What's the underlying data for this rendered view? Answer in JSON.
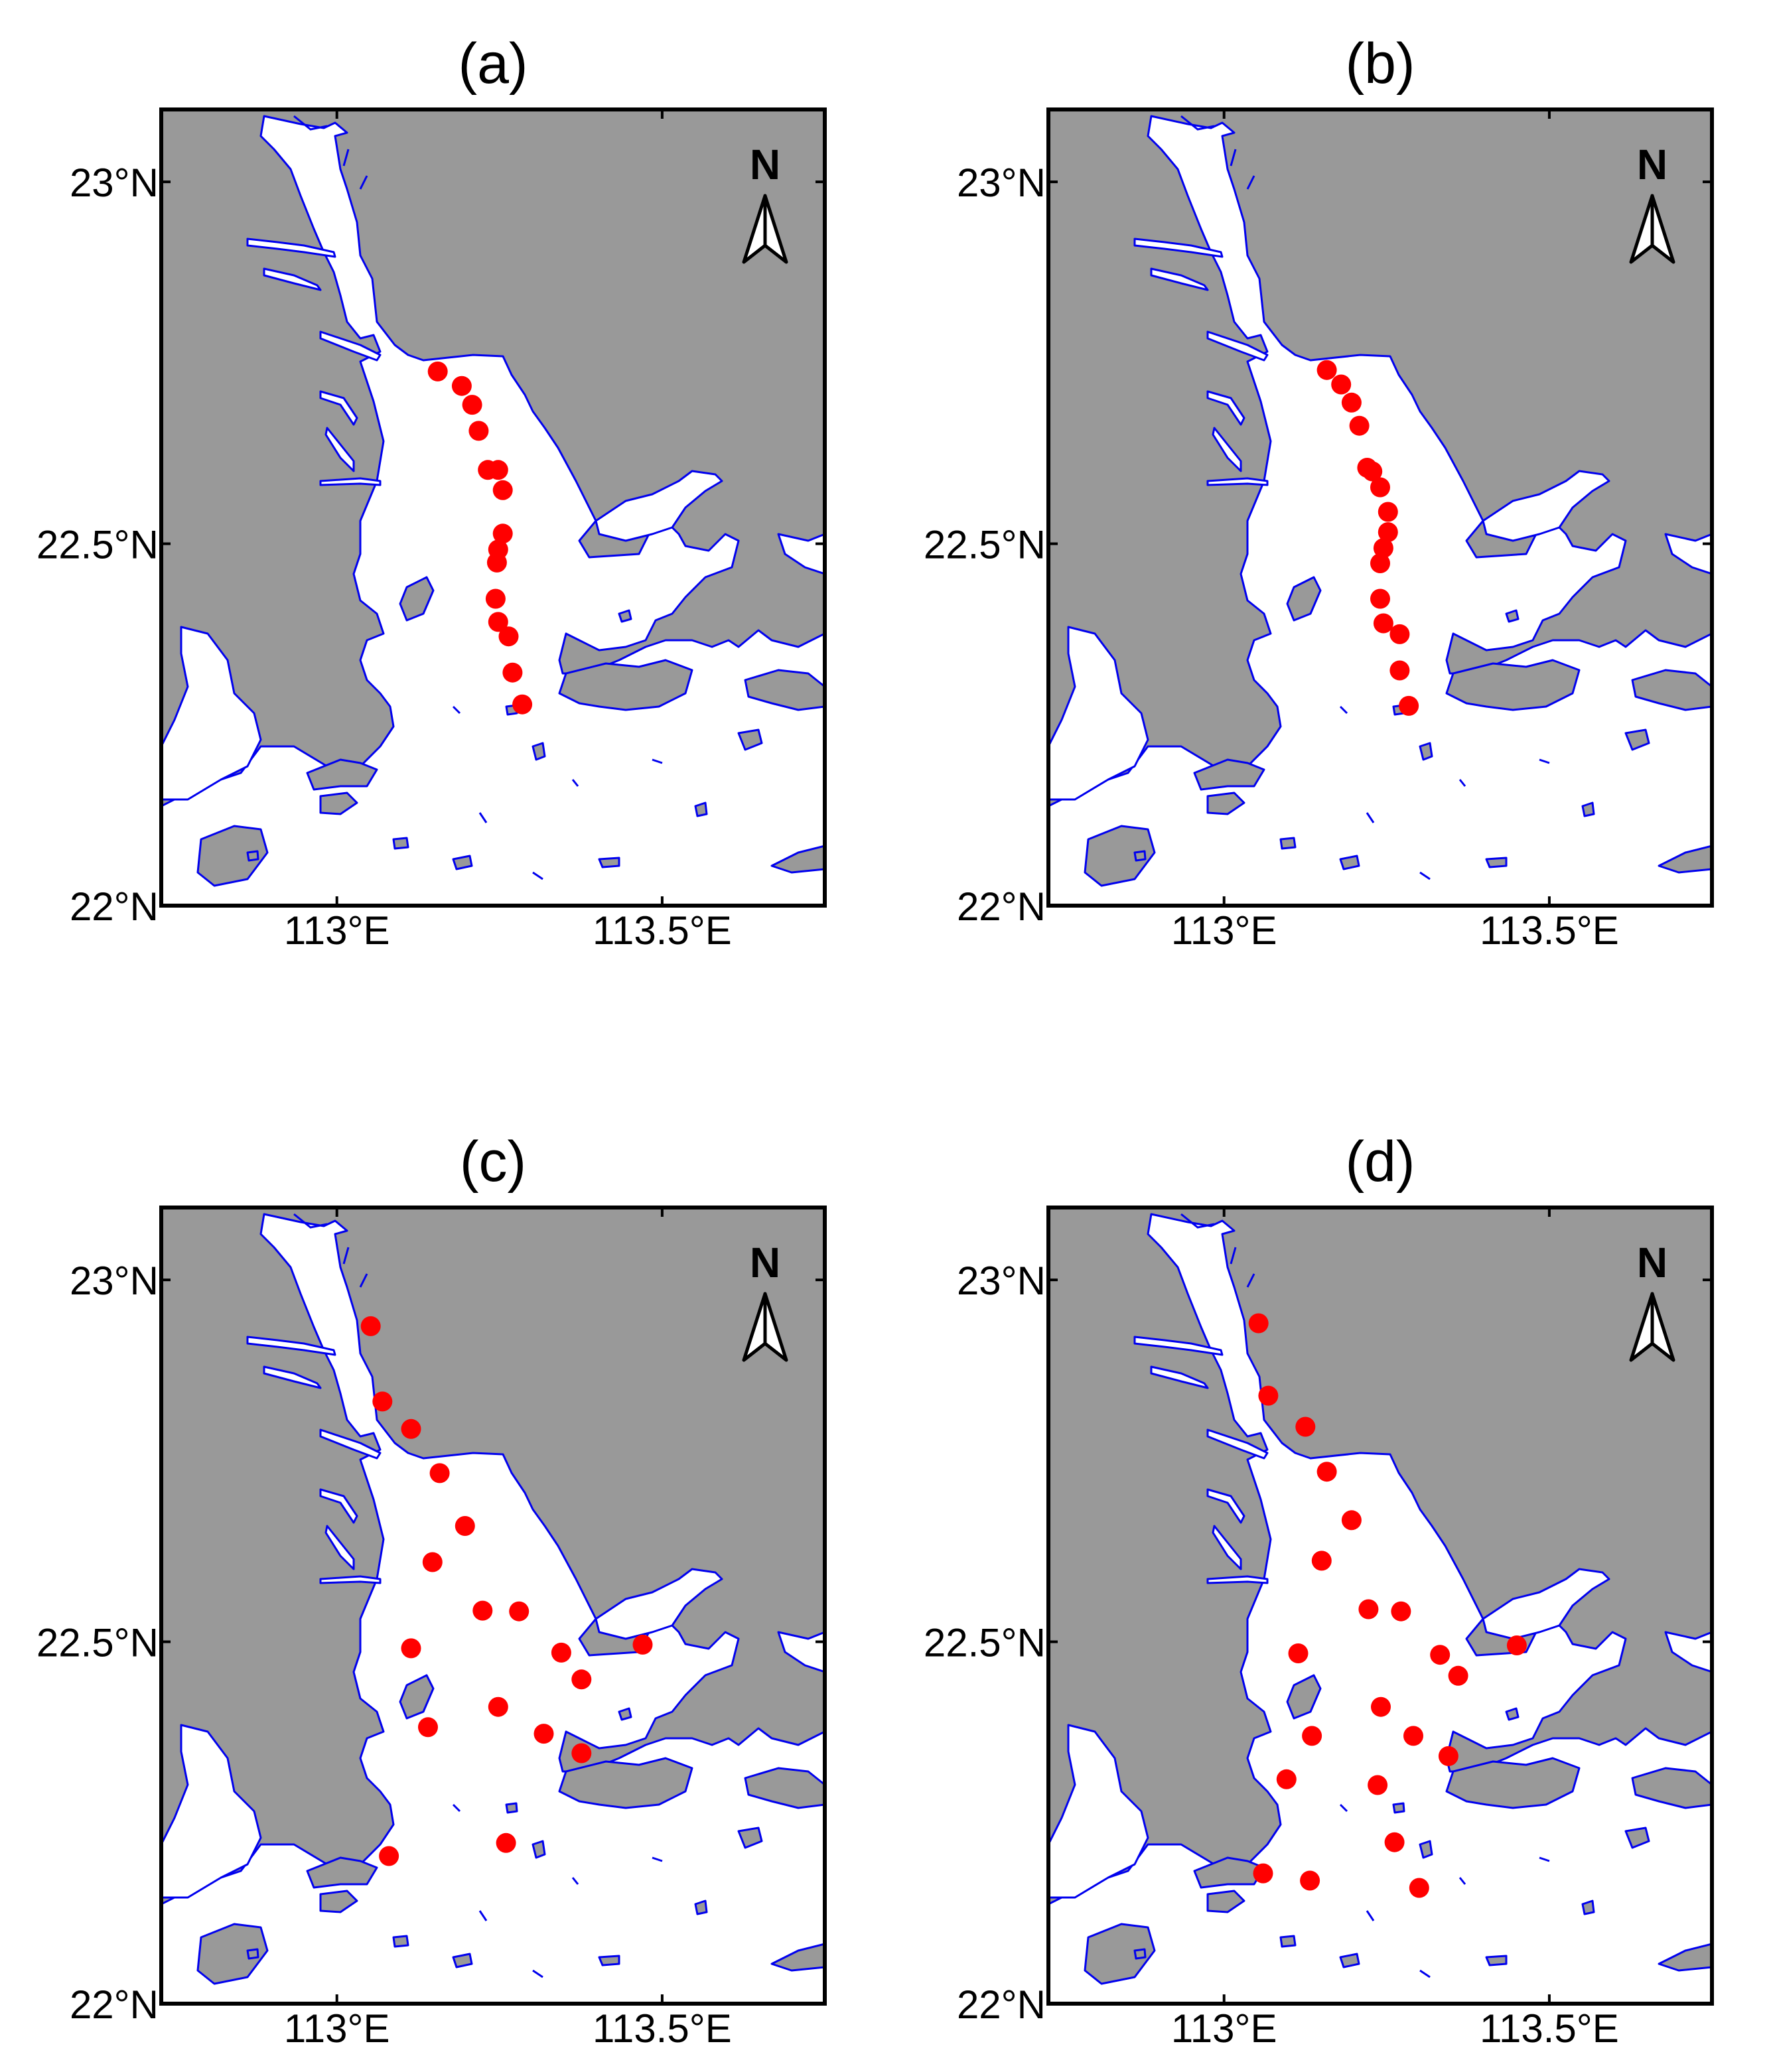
{
  "colors": {
    "land": "#999999",
    "water": "#ffffff",
    "coastline": "#0000ee",
    "station": "#ff0000",
    "frame": "#000000"
  },
  "north_arrow": {
    "label": "N",
    "icon": "north-arrow-icon"
  },
  "axes": {
    "lon_range": [
      112.73,
      113.75
    ],
    "lat_range": [
      22.0,
      23.1
    ],
    "x_ticks": [
      113.0,
      113.5
    ],
    "x_tick_labels": [
      "113°E",
      "113.5°E"
    ],
    "y_ticks": [
      22.0,
      22.5,
      23.0
    ],
    "y_tick_labels": [
      "22°N",
      "22.5°N",
      "23°N"
    ]
  },
  "panels": [
    {
      "title": "(a)",
      "stations": [
        [
          113.155,
          22.738
        ],
        [
          113.192,
          22.718
        ],
        [
          113.208,
          22.692
        ],
        [
          113.218,
          22.656
        ],
        [
          113.232,
          22.602
        ],
        [
          113.248,
          22.602
        ],
        [
          113.255,
          22.574
        ],
        [
          113.255,
          22.514
        ],
        [
          113.248,
          22.492
        ],
        [
          113.246,
          22.474
        ],
        [
          113.244,
          22.424
        ],
        [
          113.248,
          22.392
        ],
        [
          113.264,
          22.372
        ],
        [
          113.27,
          22.322
        ],
        [
          113.285,
          22.278
        ]
      ]
    },
    {
      "title": "(b)",
      "stations": [
        [
          113.158,
          22.74
        ],
        [
          113.18,
          22.72
        ],
        [
          113.196,
          22.695
        ],
        [
          113.208,
          22.663
        ],
        [
          113.22,
          22.605
        ],
        [
          113.228,
          22.6
        ],
        [
          113.24,
          22.578
        ],
        [
          113.252,
          22.544
        ],
        [
          113.252,
          22.516
        ],
        [
          113.245,
          22.494
        ],
        [
          113.24,
          22.473
        ],
        [
          113.24,
          22.424
        ],
        [
          113.245,
          22.39
        ],
        [
          113.27,
          22.375
        ],
        [
          113.27,
          22.325
        ],
        [
          113.284,
          22.276
        ]
      ]
    },
    {
      "title": "(c)",
      "stations": [
        [
          113.052,
          22.936
        ],
        [
          113.07,
          22.832
        ],
        [
          113.114,
          22.794
        ],
        [
          113.158,
          22.733
        ],
        [
          113.197,
          22.66
        ],
        [
          113.147,
          22.61
        ],
        [
          113.224,
          22.543
        ],
        [
          113.28,
          22.542
        ],
        [
          113.345,
          22.485
        ],
        [
          113.47,
          22.496
        ],
        [
          113.376,
          22.448
        ],
        [
          113.114,
          22.491
        ],
        [
          113.248,
          22.41
        ],
        [
          113.14,
          22.382
        ],
        [
          113.318,
          22.373
        ],
        [
          113.376,
          22.346
        ],
        [
          113.08,
          22.204
        ],
        [
          113.26,
          22.222
        ]
      ]
    },
    {
      "title": "(d)",
      "stations": [
        [
          113.053,
          22.94
        ],
        [
          113.068,
          22.84
        ],
        [
          113.125,
          22.797
        ],
        [
          113.158,
          22.735
        ],
        [
          113.196,
          22.668
        ],
        [
          113.15,
          22.612
        ],
        [
          113.222,
          22.545
        ],
        [
          113.272,
          22.542
        ],
        [
          113.332,
          22.482
        ],
        [
          113.45,
          22.495
        ],
        [
          113.36,
          22.453
        ],
        [
          113.114,
          22.484
        ],
        [
          113.241,
          22.41
        ],
        [
          113.135,
          22.37
        ],
        [
          113.291,
          22.37
        ],
        [
          113.345,
          22.342
        ],
        [
          113.096,
          22.31
        ],
        [
          113.236,
          22.302
        ],
        [
          113.262,
          22.223
        ],
        [
          113.06,
          22.18
        ],
        [
          113.132,
          22.17
        ],
        [
          113.3,
          22.16
        ]
      ]
    }
  ]
}
